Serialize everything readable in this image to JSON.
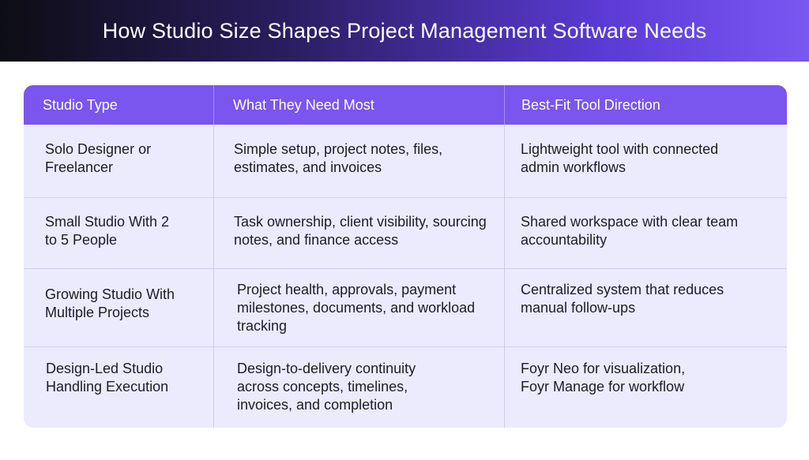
{
  "title": "How Studio Size Shapes Project Management Software Needs",
  "colors": {
    "header_bg": "#7a55ee",
    "body_bg": "#ecebfd",
    "banner_start": "#0d0d14",
    "banner_end": "#7b57f2"
  },
  "table": {
    "headers": [
      "Studio Type",
      "What They Need Most",
      "Best-Fit Tool Direction"
    ],
    "rows": [
      {
        "studio_type": "Solo Designer or Freelancer",
        "needs": "Simple setup, project notes, files, estimates, and invoices",
        "tool": "Lightweight tool with connected admin workflows"
      },
      {
        "studio_type": "Small Studio With 2 to 5 People",
        "needs": "Task ownership, client visibility, sourcing notes, and finance access",
        "tool": "Shared workspace with clear team accountability"
      },
      {
        "studio_type": "Growing Studio With Multiple Projects",
        "needs": "Project health, approvals, payment milestones, documents, and workload tracking",
        "tool": "Centralized system that reduces manual follow-ups"
      },
      {
        "studio_type": "Design-Led Studio Handling Execution",
        "needs": "Design-to-delivery continuity across concepts, timelines, invoices, and completion",
        "tool": "Foyr Neo for visualization, Foyr Manage for workflow"
      }
    ]
  }
}
